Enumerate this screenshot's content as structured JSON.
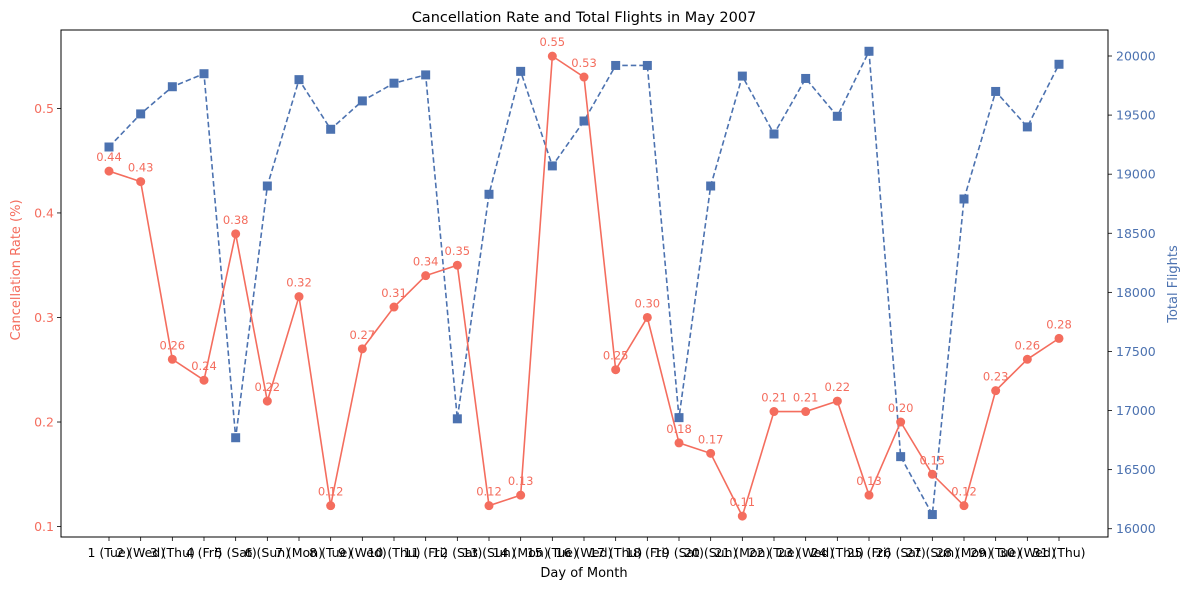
{
  "chart_data": {
    "type": "line",
    "title": "Cancellation Rate and Total Flights in May 2007",
    "xlabel": "Day of Month",
    "ylabel_left": "Cancellation Rate (%)",
    "ylabel_right": "Total Flights",
    "categories": [
      "1 (Tue)",
      "2 (Wed)",
      "3 (Thu)",
      "4 (Fri)",
      "5 (Sat)",
      "6 (Sun)",
      "7 (Mon)",
      "8 (Tue)",
      "9 (Wed)",
      "10 (Thu)",
      "11 (Fri)",
      "12 (Sat)",
      "13 (Sun)",
      "14 (Mon)",
      "15 (Tue)",
      "16 (Wed)",
      "17 (Thu)",
      "18 (Fri)",
      "19 (Sat)",
      "20 (Sun)",
      "21 (Mon)",
      "22 (Tue)",
      "23 (Wed)",
      "24 (Thu)",
      "25 (Fri)",
      "26 (Sat)",
      "27 (Sun)",
      "28 (Mon)",
      "29 (Tue)",
      "30 (Wed)",
      "31 (Thu)"
    ],
    "series": [
      {
        "axis": "left",
        "color": "#f46d5e",
        "marker": "circle",
        "linestyle": "solid",
        "values": [
          0.44,
          0.43,
          0.26,
          0.24,
          0.38,
          0.22,
          0.32,
          0.12,
          0.27,
          0.31,
          0.34,
          0.35,
          0.12,
          0.13,
          0.55,
          0.53,
          0.25,
          0.3,
          0.18,
          0.17,
          0.11,
          0.21,
          0.21,
          0.22,
          0.13,
          0.2,
          0.15,
          0.12,
          0.23,
          0.26,
          0.28
        ],
        "data_labels": [
          "0.44",
          "0.43",
          "0.26",
          "0.24",
          "0.38",
          "0.22",
          "0.32",
          "0.12",
          "0.27",
          "0.31",
          "0.34",
          "0.35",
          "0.12",
          "0.13",
          "0.55",
          "0.53",
          "0.25",
          "0.30",
          "0.18",
          "0.17",
          "0.11",
          "0.21",
          "0.21",
          "0.22",
          "0.13",
          "0.20",
          "0.15",
          "0.12",
          "0.23",
          "0.26",
          "0.28"
        ]
      },
      {
        "axis": "right",
        "color": "#4c72b0",
        "marker": "square",
        "linestyle": "dashed",
        "values": [
          19230,
          19510,
          19740,
          19850,
          16770,
          18900,
          19800,
          19380,
          19620,
          19770,
          19840,
          16930,
          18830,
          19870,
          19070,
          19450,
          19920,
          19920,
          16940,
          18900,
          19830,
          19340,
          19810,
          19490,
          20040,
          16610,
          16120,
          18790,
          19700,
          19400,
          19930
        ]
      }
    ],
    "ylim_left": [
      0.09,
      0.575
    ],
    "yticks_left": [
      "0.1",
      "0.2",
      "0.3",
      "0.4",
      "0.5"
    ],
    "ylim_right": [
      15930,
      20220
    ],
    "yticks_right": [
      "16000",
      "16500",
      "17000",
      "17500",
      "18000",
      "18500",
      "19000",
      "19500",
      "20000"
    ],
    "grid": false,
    "legend": "none"
  }
}
